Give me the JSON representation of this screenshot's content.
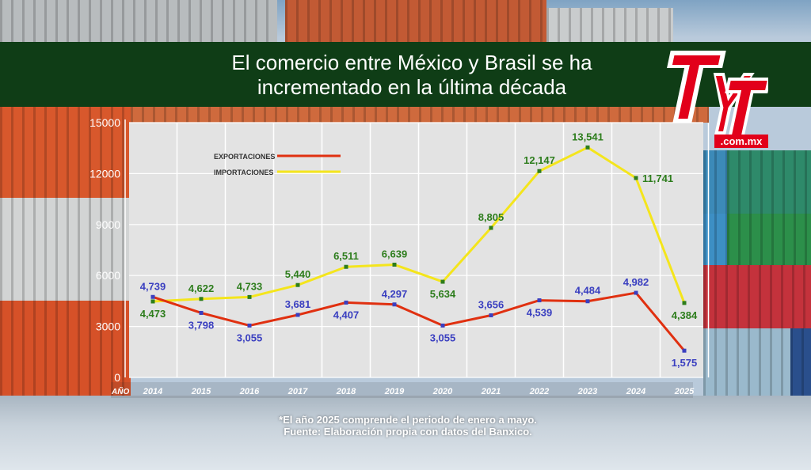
{
  "header": {
    "title_line1": "El comercio entre México y Brasil se ha",
    "title_line2": "incrementado en la última década"
  },
  "logo": {
    "text": "TyT",
    "domain": ".com.mx",
    "icon": "tyt-logo",
    "color": "#e2001a"
  },
  "chart_data": {
    "type": "line",
    "x": [
      2014,
      2015,
      2016,
      2017,
      2018,
      2019,
      2020,
      2021,
      2022,
      2023,
      2024,
      2025
    ],
    "xlabel": "AÑO",
    "ylim": [
      0,
      15000
    ],
    "yticks": [
      "0",
      "3000",
      "6000",
      "9000",
      "12000",
      "15000"
    ],
    "xticks": [
      "2014",
      "2015",
      "2016",
      "2017",
      "2018",
      "2019",
      "2020",
      "2021",
      "2022",
      "2023",
      "2024",
      "2025"
    ],
    "grid": true,
    "legend_position": "top-left",
    "series": [
      {
        "name": "EXPORTACIONES",
        "color": "#e03010",
        "label_color": "#3a3fc0",
        "values": [
          4739,
          3798,
          3055,
          3681,
          4407,
          4297,
          3055,
          3656,
          4539,
          4484,
          4982,
          1575
        ],
        "labels": [
          "4,739",
          "3,798",
          "3,055",
          "3,681",
          "4,407",
          "4,297",
          "3,055",
          "3,656",
          "4,539",
          "4,484",
          "4,982",
          "1,575"
        ]
      },
      {
        "name": "IMPORTACIONES",
        "color": "#f4e51c",
        "label_color": "#2d7d1c",
        "values": [
          4473,
          4622,
          4733,
          5440,
          6511,
          6639,
          5634,
          8805,
          12147,
          13541,
          11741,
          4384
        ],
        "labels": [
          "4,473",
          "4,622",
          "4,733",
          "5,440",
          "6,511",
          "6,639",
          "5,634",
          "8,805",
          "12,147",
          "13,541",
          "11,741",
          "4,384"
        ]
      }
    ]
  },
  "footer": {
    "note_line1": "*El año 2025 comprende el periodo de enero a mayo.",
    "note_line2": "Fuente: Elaboración propia con datos del Banxico."
  }
}
